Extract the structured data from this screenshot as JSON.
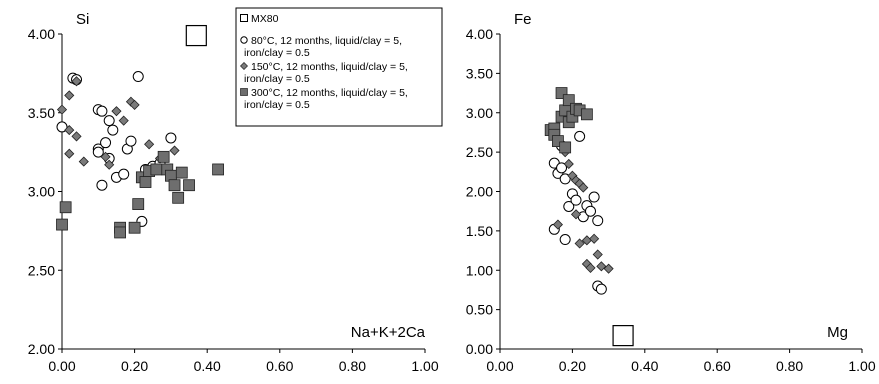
{
  "chart_data": [
    {
      "type": "scatter",
      "ylabel": "Si",
      "xlabel": "Na+K+2Ca",
      "xlim": [
        0,
        1
      ],
      "ylim": [
        2,
        4
      ],
      "xticks": [
        "0.00",
        "0.20",
        "0.40",
        "0.60",
        "0.80",
        "1.00"
      ],
      "yticks": [
        "2.00",
        "2.50",
        "3.00",
        "3.50",
        "4.00"
      ],
      "grid": false,
      "legend": "top-right",
      "series": [
        {
          "name": "MX80",
          "marker": "square-open-large",
          "points": [
            [
              0.37,
              3.99
            ]
          ]
        },
        {
          "name": "80°C, 12 months, liquid/clay = 5, iron/clay = 0.5",
          "marker": "circle-open",
          "points": [
            [
              0.0,
              3.41
            ],
            [
              0.03,
              3.72
            ],
            [
              0.04,
              3.71
            ],
            [
              0.1,
              3.52
            ],
            [
              0.11,
              3.51
            ],
            [
              0.13,
              3.45
            ],
            [
              0.14,
              3.39
            ],
            [
              0.1,
              3.27
            ],
            [
              0.1,
              3.25
            ],
            [
              0.11,
              3.04
            ],
            [
              0.12,
              3.31
            ],
            [
              0.13,
              3.21
            ],
            [
              0.15,
              3.09
            ],
            [
              0.17,
              3.11
            ],
            [
              0.18,
              3.27
            ],
            [
              0.19,
              3.32
            ],
            [
              0.21,
              3.73
            ],
            [
              0.22,
              2.81
            ],
            [
              0.23,
              3.14
            ],
            [
              0.25,
              3.16
            ],
            [
              0.27,
              3.18
            ],
            [
              0.3,
              3.34
            ]
          ]
        },
        {
          "name": "150°C, 12 months, liquid/clay = 5, iron/clay = 0.5",
          "marker": "diamond-filled",
          "points": [
            [
              0.0,
              3.52
            ],
            [
              0.02,
              3.24
            ],
            [
              0.02,
              3.61
            ],
            [
              0.02,
              3.39
            ],
            [
              0.04,
              3.35
            ],
            [
              0.04,
              3.7
            ],
            [
              0.06,
              3.19
            ],
            [
              0.12,
              3.22
            ],
            [
              0.13,
              3.17
            ],
            [
              0.15,
              3.51
            ],
            [
              0.17,
              3.45
            ],
            [
              0.19,
              3.57
            ],
            [
              0.2,
              3.55
            ],
            [
              0.24,
              3.3
            ],
            [
              0.27,
              3.21
            ],
            [
              0.31,
              3.26
            ]
          ]
        },
        {
          "name": "300°C, 12 months, liquid/clay = 5, iron/clay = 0.5",
          "marker": "square-filled",
          "points": [
            [
              0.0,
              2.79
            ],
            [
              0.01,
              2.9
            ],
            [
              0.16,
              2.77
            ],
            [
              0.16,
              2.74
            ],
            [
              0.2,
              2.77
            ],
            [
              0.21,
              2.92
            ],
            [
              0.22,
              3.09
            ],
            [
              0.23,
              3.06
            ],
            [
              0.24,
              3.13
            ],
            [
              0.26,
              3.14
            ],
            [
              0.28,
              3.22
            ],
            [
              0.29,
              3.14
            ],
            [
              0.3,
              3.1
            ],
            [
              0.31,
              3.04
            ],
            [
              0.32,
              2.96
            ],
            [
              0.33,
              3.12
            ],
            [
              0.35,
              3.04
            ],
            [
              0.43,
              3.14
            ]
          ]
        }
      ]
    },
    {
      "type": "scatter",
      "ylabel": "Fe",
      "xlabel": "Mg",
      "xlim": [
        0,
        1
      ],
      "ylim": [
        0,
        4
      ],
      "xticks": [
        "0.00",
        "0.20",
        "0.40",
        "0.60",
        "0.80",
        "1.00"
      ],
      "yticks": [
        "0.00",
        "0.50",
        "1.00",
        "1.50",
        "2.00",
        "2.50",
        "3.00",
        "3.50",
        "4.00"
      ],
      "grid": false,
      "series": [
        {
          "name": "MX80",
          "marker": "square-open-large",
          "points": [
            [
              0.34,
              0.17
            ]
          ]
        },
        {
          "name": "80°C, 12 months, liquid/clay = 5, iron/clay = 0.5",
          "marker": "circle-open",
          "points": [
            [
              0.15,
              2.36
            ],
            [
              0.16,
              2.23
            ],
            [
              0.17,
              2.58
            ],
            [
              0.17,
              2.3
            ],
            [
              0.18,
              2.16
            ],
            [
              0.18,
              1.39
            ],
            [
              0.19,
              1.81
            ],
            [
              0.2,
              1.97
            ],
            [
              0.21,
              1.89
            ],
            [
              0.22,
              2.7
            ],
            [
              0.23,
              1.68
            ],
            [
              0.24,
              1.82
            ],
            [
              0.25,
              1.75
            ],
            [
              0.26,
              1.93
            ],
            [
              0.27,
              1.63
            ],
            [
              0.27,
              0.8
            ],
            [
              0.28,
              0.76
            ],
            [
              0.15,
              1.52
            ]
          ]
        },
        {
          "name": "150°C, 12 months, liquid/clay = 5, iron/clay = 0.5",
          "marker": "diamond-filled",
          "points": [
            [
              0.16,
              1.58
            ],
            [
              0.18,
              2.5
            ],
            [
              0.19,
              2.35
            ],
            [
              0.2,
              2.2
            ],
            [
              0.21,
              2.14
            ],
            [
              0.22,
              2.1
            ],
            [
              0.23,
              2.05
            ],
            [
              0.24,
              1.38
            ],
            [
              0.24,
              1.08
            ],
            [
              0.25,
              1.03
            ],
            [
              0.26,
              1.4
            ],
            [
              0.27,
              1.2
            ],
            [
              0.28,
              1.05
            ],
            [
              0.3,
              1.02
            ],
            [
              0.22,
              1.34
            ],
            [
              0.21,
              1.71
            ]
          ]
        },
        {
          "name": "300°C, 12 months, liquid/clay = 5, iron/clay = 0.5",
          "marker": "square-filled",
          "points": [
            [
              0.14,
              2.78
            ],
            [
              0.15,
              2.8
            ],
            [
              0.15,
              2.72
            ],
            [
              0.16,
              2.64
            ],
            [
              0.17,
              3.25
            ],
            [
              0.17,
              2.95
            ],
            [
              0.18,
              3.03
            ],
            [
              0.18,
              2.56
            ],
            [
              0.19,
              3.16
            ],
            [
              0.19,
              2.88
            ],
            [
              0.2,
              2.95
            ],
            [
              0.21,
              3.05
            ],
            [
              0.22,
              3.03
            ],
            [
              0.24,
              2.98
            ]
          ]
        }
      ]
    }
  ]
}
